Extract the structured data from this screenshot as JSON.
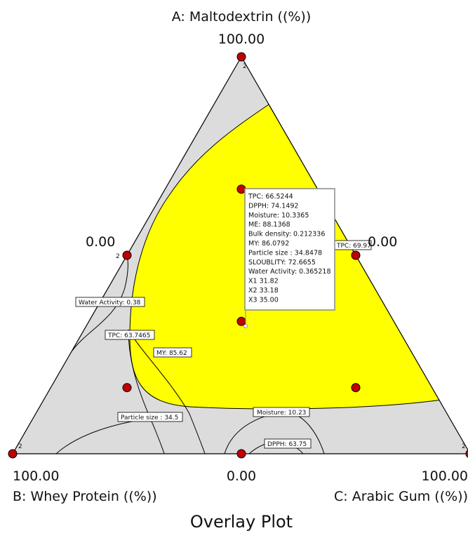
{
  "chart_data": {
    "type": "ternary-overlay",
    "title": "Overlay Plot",
    "components": {
      "A": "A: Maltodextrin ((%))",
      "B": "B: Whey Protein ((%))",
      "C": "C: Arabic Gum ((%))"
    },
    "vertex_labels": {
      "A": "100.00",
      "B": "100.00",
      "C": "100.00"
    },
    "edge_labels": {
      "left": "0.00",
      "right": "0.00",
      "bottom": "0.00"
    },
    "colors": {
      "feasible": "#ffff00",
      "infeasible": "#dcdcdc",
      "point": "#c00000",
      "frame": "#000000"
    },
    "design_points": [
      {
        "A": 100,
        "B": 0,
        "C": 0,
        "reps": "2"
      },
      {
        "A": 0,
        "B": 100,
        "C": 0,
        "reps": "2"
      },
      {
        "A": 0,
        "B": 0,
        "C": 100,
        "reps": "2"
      },
      {
        "A": 50,
        "B": 50,
        "C": 0,
        "reps": "2"
      },
      {
        "A": 50,
        "B": 0,
        "C": 50,
        "reps": ""
      },
      {
        "A": 0,
        "B": 50,
        "C": 50,
        "reps": ""
      },
      {
        "A": 66.67,
        "B": 16.67,
        "C": 16.67,
        "reps": ""
      },
      {
        "A": 33.33,
        "B": 33.33,
        "C": 33.33,
        "reps": ""
      },
      {
        "A": 16.67,
        "B": 66.67,
        "C": 16.67,
        "reps": ""
      },
      {
        "A": 16.67,
        "B": 16.67,
        "C": 66.67,
        "reps": ""
      }
    ],
    "contour_labels": [
      "Water Activity: 0.38",
      "TPC: 63.7465",
      "MY: 85.62",
      "Particle size : 34.5",
      "Moisture: 10.23",
      "DPPH: 63.75",
      "TPC: 69.97"
    ],
    "tooltip": [
      "TPC:  66.5244",
      "DPPH:  74.1492",
      "Moisture:  10.3365",
      "ME:  88.1368",
      "Bulk density:  0.212336",
      "MY:  86.0792",
      "Particle size :  34.8478",
      "SLOUBLITY:  72.6655",
      "Water Activity:  0.365218",
      "X1  31.82",
      "X2  33.18",
      "X3  35.00"
    ]
  }
}
